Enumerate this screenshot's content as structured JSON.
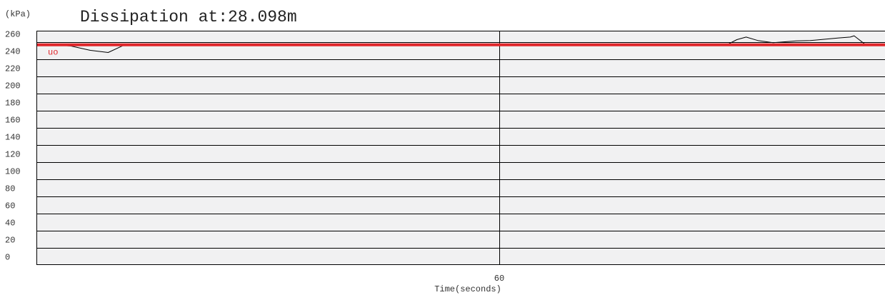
{
  "chart_data": {
    "type": "line",
    "title": "Dissipation at:28.098m",
    "unit_label": "(kPa)",
    "xlabel": "Time(seconds)",
    "ylabel": "",
    "xlim": [
      0,
      110
    ],
    "ylim": [
      0,
      260
    ],
    "yticks": [
      0,
      20,
      40,
      60,
      80,
      100,
      120,
      140,
      160,
      180,
      200,
      220,
      240,
      260
    ],
    "xticks": [
      60
    ],
    "grid": "horizontal lines every 20 kPa; vertical line at 60 s",
    "background_color": "#f1f1f2",
    "series": [
      {
        "name": "",
        "color": "#000000",
        "x": [
          0,
          2.5,
          4.5,
          7.0,
          9.3,
          11.2,
          22,
          40,
          60,
          80,
          89.5,
          90.8,
          92.0,
          93.5,
          95.5,
          97.8,
          98.5,
          100.3,
          101.0,
          104.0,
          105.5,
          106.0,
          106.2,
          107.5,
          110
        ],
        "y": [
          256.5,
          256.5,
          255.0,
          250.0,
          247.5,
          255.5,
          256.5,
          256.5,
          256.5,
          256.5,
          256.5,
          262.5,
          265.5,
          261.5,
          259.0,
          260.5,
          261.0,
          261.5,
          262.0,
          264.5,
          265.5,
          267.0,
          265.5,
          256.5,
          256.5
        ]
      },
      {
        "name": "uo",
        "color": "#e0262a",
        "x": [
          0,
          110
        ],
        "y": [
          256.5,
          256.5
        ]
      }
    ]
  }
}
